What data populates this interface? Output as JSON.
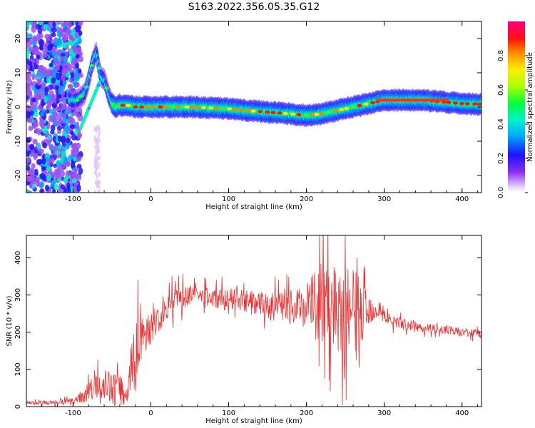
{
  "figure": {
    "title": "S163.2022.356.05.35.G12"
  },
  "colors": {
    "snr_line": "#f03030",
    "axes": "#000000",
    "colormap": [
      "#e8e0f8",
      "#c07cf0",
      "#6a00f0",
      "#0050ff",
      "#00c8ff",
      "#00ff70",
      "#ffff00",
      "#ff6000",
      "#ff0030",
      "#ff0090"
    ]
  },
  "chart_data": [
    {
      "type": "heatmap",
      "title": "",
      "xlabel": "Height of straight line (km)",
      "ylabel": "Frequency (Hz)",
      "xlim": [
        -160,
        425
      ],
      "ylim": [
        -25,
        25
      ],
      "x_ticks": [
        -100,
        0,
        100,
        200,
        300,
        400
      ],
      "y_ticks": [
        -20,
        -10,
        0,
        10,
        20
      ],
      "ridge": {
        "x": [
          -95,
          -85,
          -80,
          -75,
          -70,
          -65,
          -60,
          -55,
          -50,
          -45,
          -40,
          -30,
          -20,
          0,
          50,
          100,
          120,
          150,
          180,
          200,
          220,
          240,
          260,
          280,
          300,
          350,
          400,
          425
        ],
        "y": [
          2,
          4,
          8,
          13,
          16,
          9,
          8,
          4,
          1,
          0,
          0.5,
          0.5,
          0,
          0,
          0,
          -0.5,
          -1,
          -1.5,
          -2,
          -2.5,
          -2,
          -1,
          0,
          1,
          2,
          2,
          1,
          0.8
        ]
      },
      "colorbar": {
        "label": "Normalized spectral amplitude",
        "range": [
          0,
          1
        ],
        "ticks": [
          "0.0",
          "0.2",
          "0.4",
          "0.6",
          "0.8"
        ]
      }
    },
    {
      "type": "line",
      "title": "",
      "xlabel": "Height of straight line (km)",
      "ylabel": "SNR (10 * v/v)",
      "xlim": [
        -160,
        425
      ],
      "ylim": [
        0,
        460
      ],
      "x_ticks": [
        -100,
        0,
        100,
        200,
        300,
        400
      ],
      "y_ticks": [
        0,
        100,
        200,
        300,
        400
      ],
      "series": [
        {
          "x": [
            -160,
            -140,
            -120,
            -100,
            -90,
            -80,
            -70,
            -60,
            -50,
            -40,
            -35,
            -30,
            -25,
            -20,
            -10,
            0,
            10,
            20,
            30,
            50,
            70,
            90,
            110,
            130,
            150,
            170,
            190,
            210,
            230,
            240,
            250,
            260,
            270,
            280,
            290,
            300,
            320,
            340,
            360,
            380,
            400,
            425
          ],
          "y": [
            10,
            10,
            12,
            15,
            25,
            40,
            55,
            60,
            50,
            45,
            40,
            30,
            110,
            150,
            190,
            215,
            235,
            265,
            285,
            300,
            295,
            290,
            285,
            280,
            270,
            265,
            270,
            280,
            280,
            270,
            265,
            255,
            250,
            260,
            265,
            240,
            225,
            215,
            210,
            205,
            200,
            195
          ],
          "envelope": {
            "x": [
              -160,
              -100,
              -80,
              -60,
              -40,
              -30,
              -25,
              -20,
              -10,
              0,
              20,
              40,
              60,
              100,
              150,
              190,
              210,
              220,
              230,
              240,
              250,
              260,
              270,
              280,
              290,
              300,
              350,
              425
            ],
            "y": [
              8,
              12,
              45,
              70,
              70,
              50,
              140,
              200,
              80,
              80,
              60,
              50,
              40,
              50,
              60,
              80,
              150,
              180,
              200,
              220,
              210,
              200,
              150,
              80,
              40,
              30,
              20,
              20
            ]
          }
        }
      ]
    }
  ]
}
